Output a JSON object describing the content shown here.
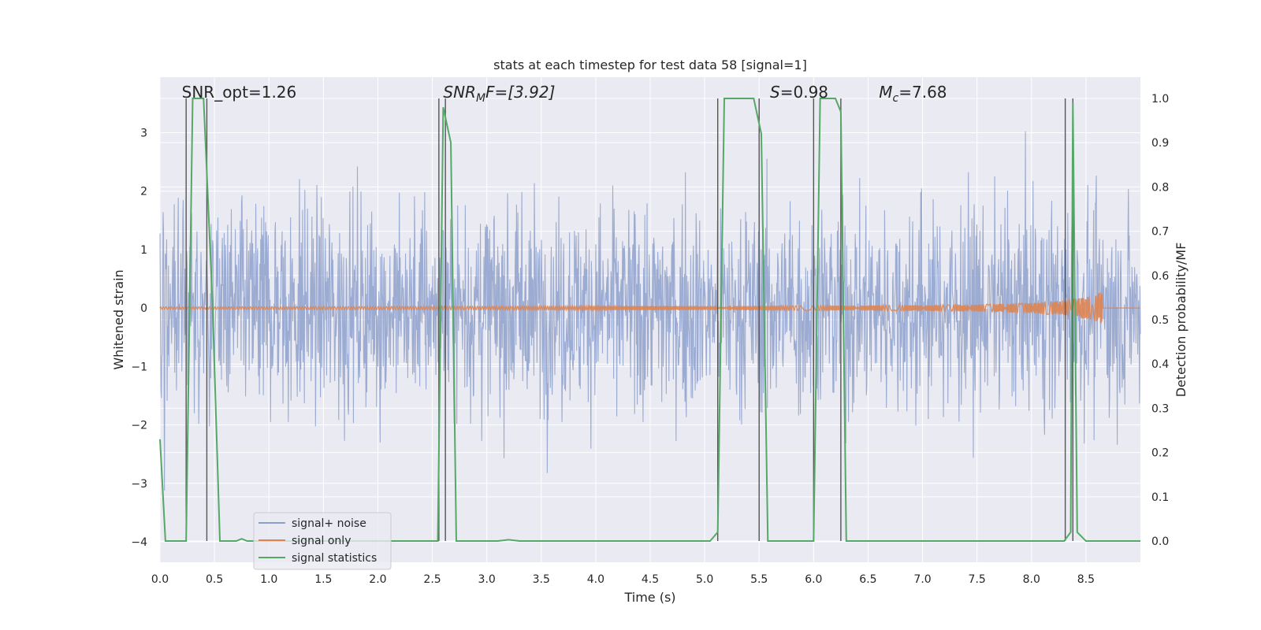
{
  "chart_data": {
    "type": "line",
    "title": "stats at each timestep for test data 58 [signal=1]",
    "xlabel": "Time (s)",
    "ylabel": "Whitened strain",
    "y2label": "Detection probability/MF",
    "xlim": [
      0.0,
      9.0
    ],
    "ylim": [
      -4.35,
      3.95
    ],
    "y2lim": [
      -0.048,
      1.048
    ],
    "xticks": [
      "0.0",
      "0.5",
      "1.0",
      "1.5",
      "2.0",
      "2.5",
      "3.0",
      "3.5",
      "4.0",
      "4.5",
      "5.0",
      "5.5",
      "6.0",
      "6.5",
      "7.0",
      "7.5",
      "8.0",
      "8.5"
    ],
    "yticks": [
      "3",
      "2",
      "1",
      "0",
      "−1",
      "−2",
      "−3",
      "−4"
    ],
    "y2ticks": [
      "1.0",
      "0.9",
      "0.8",
      "0.7",
      "0.6",
      "0.5",
      "0.4",
      "0.3",
      "0.2",
      "0.1",
      "0.0"
    ],
    "grid": true,
    "legend_position": "lower-left",
    "colors": {
      "noise": "#8da0cb",
      "signal": "#dd8452",
      "stats": "#55a868",
      "marker": "#555555",
      "background": "#eaeaf2",
      "grid": "#ffffff"
    },
    "series": [
      {
        "name": "signal+ noise",
        "style": "dense noise band, amplitude within about ±4"
      },
      {
        "name": "signal only",
        "x": [
          0.0,
          6.0,
          7.0,
          7.5,
          8.0,
          8.3,
          8.55,
          8.65
        ],
        "envelope": [
          0.02,
          0.04,
          0.05,
          0.06,
          0.09,
          0.13,
          0.2,
          0.28
        ]
      },
      {
        "name": "signal statistics",
        "x": [
          0.0,
          0.05,
          0.24,
          0.3,
          0.4,
          0.48,
          0.55,
          0.7,
          0.75,
          0.8,
          2.55,
          2.6,
          2.67,
          2.72,
          3.1,
          3.2,
          3.3,
          5.05,
          5.12,
          5.18,
          5.45,
          5.52,
          5.58,
          6.0,
          6.06,
          6.2,
          6.25,
          6.3,
          6.38,
          8.3,
          8.36,
          8.38,
          8.42,
          8.5,
          9.0
        ],
        "y": [
          0.23,
          0.0,
          0.0,
          1.0,
          1.0,
          0.55,
          0.0,
          0.0,
          0.005,
          0.0,
          0.0,
          0.98,
          0.9,
          0.0,
          0.0,
          0.003,
          0.0,
          0.0,
          0.02,
          1.0,
          1.0,
          0.92,
          0.0,
          0.0,
          1.0,
          1.0,
          0.97,
          0.0,
          0.0,
          0.0,
          0.02,
          0.99,
          0.02,
          0.0,
          0.0
        ]
      }
    ],
    "vertical_markers": [
      0.24,
      0.43,
      2.56,
      2.62,
      5.12,
      5.5,
      6.0,
      6.25,
      8.31,
      8.38
    ],
    "annotations": [
      {
        "text": "SNR_opt=1.26",
        "x": 0.2
      },
      {
        "text": "SNR",
        "sub": "M",
        "rest": "F=[3.92]",
        "italic": true,
        "x": 2.6
      },
      {
        "text": "S",
        "rest": "=0.98",
        "italic": true,
        "x": 5.6
      },
      {
        "text": "M",
        "sub": "c",
        "rest": "=7.68",
        "italic": true,
        "x": 6.6
      }
    ]
  }
}
